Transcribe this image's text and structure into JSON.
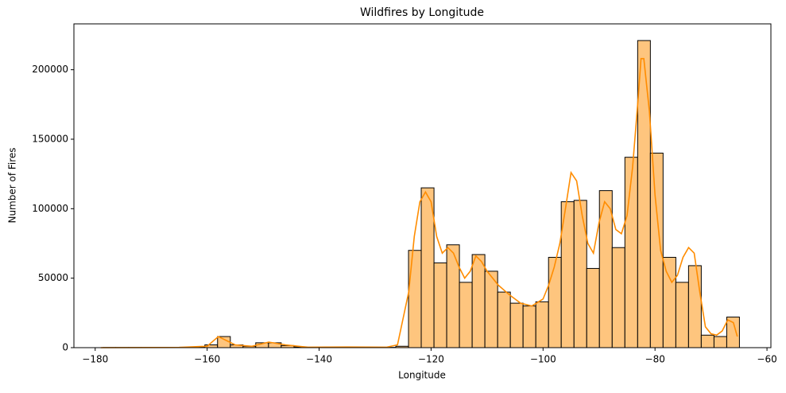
{
  "chart_data": {
    "type": "histogram",
    "title": "Wildfires by Longitude",
    "xlabel": "Longitude",
    "ylabel": "Number of Fires",
    "bins": [
      -178.6,
      -176.33,
      -174.05,
      -171.78,
      -169.51,
      -167.23,
      -164.96,
      -162.68,
      -160.41,
      -158.14,
      -155.86,
      -153.59,
      -151.32,
      -149.04,
      -146.77,
      -144.49,
      -142.22,
      -139.95,
      -137.67,
      -135.4,
      -133.13,
      -130.85,
      -128.58,
      -126.3,
      -124.03,
      -121.76,
      -119.48,
      -117.21,
      -114.94,
      -112.66,
      -110.39,
      -108.11,
      -105.84,
      -103.57,
      -101.29,
      -99.02,
      -96.75,
      -94.47,
      -92.2,
      -89.93,
      -87.65,
      -85.38,
      -83.1,
      -80.83,
      -78.56,
      -76.28,
      -74.01,
      -71.74,
      -69.46,
      -67.19,
      -64.92
    ],
    "values": [
      100,
      100,
      100,
      100,
      100,
      200,
      300,
      500,
      2000,
      8000,
      2000,
      1000,
      3500,
      3500,
      1500,
      500,
      200,
      200,
      200,
      300,
      300,
      200,
      200,
      1000,
      70000,
      115000,
      61000,
      74000,
      47000,
      67000,
      55000,
      40000,
      32000,
      30000,
      33000,
      65000,
      105000,
      106000,
      57000,
      113000,
      72000,
      137000,
      221000,
      140000,
      65000,
      47000,
      59000,
      9000,
      8000,
      22000
    ],
    "color": "#fec57e",
    "edgecolor": "#000000",
    "kde": {
      "color": "#ff8c00",
      "x": [
        -179,
        -165,
        -160,
        -158,
        -155,
        -152,
        -149,
        -146,
        -142,
        -135,
        -128,
        -126,
        -124,
        -123,
        -122,
        -121,
        -120,
        -119,
        -118,
        -117,
        -116,
        -115,
        -114,
        -113,
        -112,
        -111,
        -110,
        -108,
        -106,
        -104,
        -102,
        -100,
        -99,
        -98,
        -97,
        -96,
        -95,
        -94,
        -93,
        -92,
        -91,
        -90,
        -89,
        -88,
        -87,
        -86,
        -85,
        -84,
        -83,
        -82.5,
        -82,
        -81,
        -80,
        -79,
        -78,
        -77,
        -76,
        -75,
        -74,
        -73,
        -72,
        -71,
        -70,
        -69,
        -68,
        -67,
        -66,
        -65.3
      ],
      "values": [
        0,
        200,
        1000,
        8000,
        2000,
        1000,
        4000,
        2000,
        300,
        500,
        300,
        2000,
        40000,
        80000,
        105000,
        112000,
        105000,
        80000,
        68000,
        72000,
        68000,
        58000,
        50000,
        55000,
        66000,
        62000,
        55000,
        45000,
        38000,
        32000,
        30000,
        35000,
        45000,
        58000,
        75000,
        100000,
        126000,
        120000,
        95000,
        75000,
        68000,
        90000,
        105000,
        100000,
        85000,
        82000,
        95000,
        130000,
        180000,
        208000,
        208000,
        170000,
        110000,
        70000,
        55000,
        47000,
        52000,
        65000,
        72000,
        68000,
        40000,
        15000,
        10000,
        9000,
        12000,
        20000,
        18000,
        8000
      ]
    },
    "xlim": [
      -183.8,
      -59.3
    ],
    "ylim": [
      0,
      233000
    ],
    "xticks": [
      {
        "value": -180,
        "label": "−180"
      },
      {
        "value": -160,
        "label": "−160"
      },
      {
        "value": -140,
        "label": "−140"
      },
      {
        "value": -120,
        "label": "−120"
      },
      {
        "value": -100,
        "label": "−100"
      },
      {
        "value": -80,
        "label": "−80"
      },
      {
        "value": -60,
        "label": "−60"
      }
    ],
    "yticks": [
      0,
      50000,
      100000,
      150000,
      200000
    ],
    "grid": false
  }
}
